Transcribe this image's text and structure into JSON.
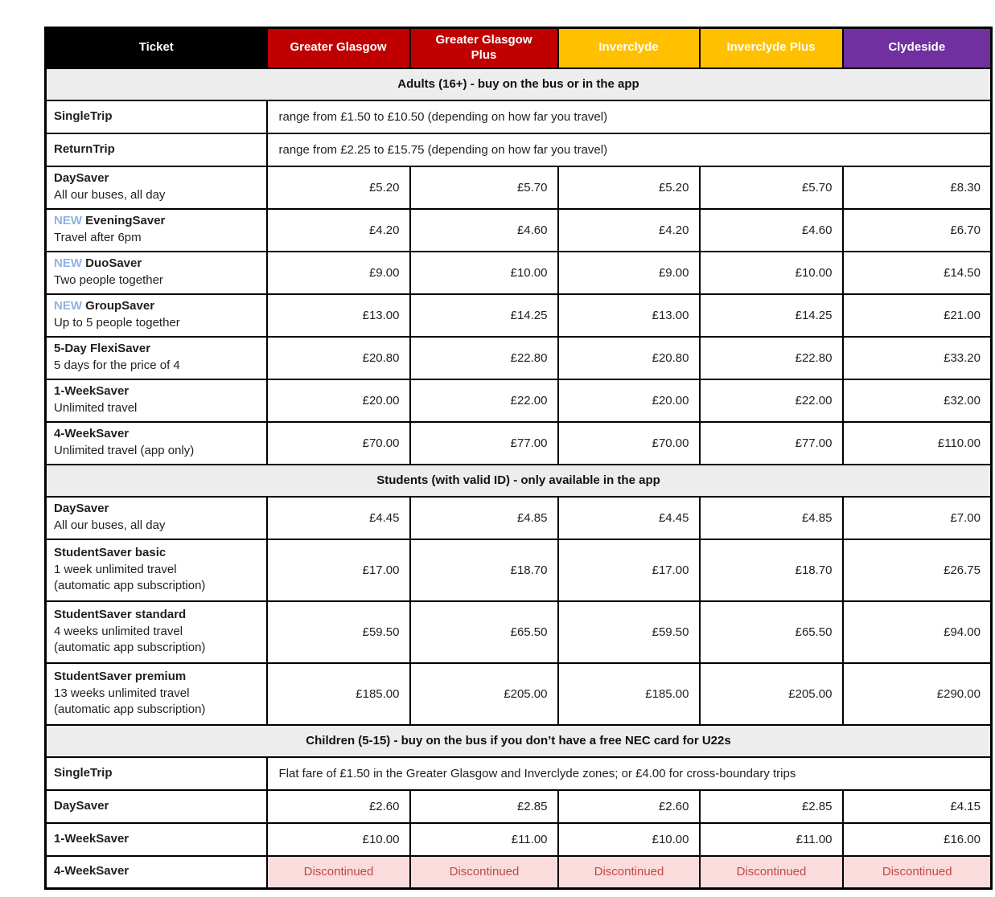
{
  "colors": {
    "ticket_header_bg": "#000000",
    "glasgow_bg": "#C00000",
    "inverclyde_bg": "#FFC000",
    "clydeside_bg": "#7030A0",
    "header_fg": "#FFFFFF",
    "section_bg": "#EDEDED",
    "new_badge_fg": "#8EB4E3",
    "discontinued_fg": "#C24848",
    "discontinued_bg": "#FADCDC"
  },
  "table": {
    "header": [
      {
        "label": "Ticket",
        "bg": "#000000",
        "fg": "#FFFFFF"
      },
      {
        "label": "Greater Glasgow",
        "bg": "#C00000",
        "fg": "#FFFFFF"
      },
      {
        "label": "Greater Glasgow Plus",
        "bg": "#C00000",
        "fg": "#FFFFFF"
      },
      {
        "label": "Inverclyde",
        "bg": "#FFC000",
        "fg": "#FFFFFF"
      },
      {
        "label": "Inverclyde Plus",
        "bg": "#FFC000",
        "fg": "#FFFFFF"
      },
      {
        "label": "Clydeside",
        "bg": "#7030A0",
        "fg": "#FFFFFF"
      }
    ],
    "sections": [
      {
        "title": "Adults (16+) - buy on the bus or in the app",
        "rows": [
          {
            "ticket": "SingleTrip",
            "note": "range from £1.50 to £10.50 (depending on how far you travel)"
          },
          {
            "ticket": "ReturnTrip",
            "note": "range from £2.25 to £15.75 (depending on how far you travel)"
          },
          {
            "ticket": "DaySaver",
            "sub": [
              "All our buses, all day"
            ],
            "prices": [
              "£5.20",
              "£5.70",
              "£5.20",
              "£5.70",
              "£8.30"
            ]
          },
          {
            "ticket": "EveningSaver",
            "badge": "NEW",
            "sub": [
              "Travel after 6pm"
            ],
            "prices": [
              "£4.20",
              "£4.60",
              "£4.20",
              "£4.60",
              "£6.70"
            ]
          },
          {
            "ticket": "DuoSaver",
            "badge": "NEW",
            "sub": [
              "Two people together"
            ],
            "prices": [
              "£9.00",
              "£10.00",
              "£9.00",
              "£10.00",
              "£14.50"
            ]
          },
          {
            "ticket": "GroupSaver",
            "badge": "NEW",
            "sub": [
              "Up to 5 people together"
            ],
            "prices": [
              "£13.00",
              "£14.25",
              "£13.00",
              "£14.25",
              "£21.00"
            ]
          },
          {
            "ticket": "5-Day FlexiSaver",
            "sub": [
              "5 days for the price of 4"
            ],
            "prices": [
              "£20.80",
              "£22.80",
              "£20.80",
              "£22.80",
              "£33.20"
            ]
          },
          {
            "ticket": "1-WeekSaver",
            "sub": [
              "Unlimited travel"
            ],
            "prices": [
              "£20.00",
              "£22.00",
              "£20.00",
              "£22.00",
              "£32.00"
            ]
          },
          {
            "ticket": "4-WeekSaver",
            "sub": [
              "Unlimited travel (app only)"
            ],
            "prices": [
              "£70.00",
              "£77.00",
              "£70.00",
              "£77.00",
              "£110.00"
            ]
          }
        ]
      },
      {
        "title": "Students (with valid ID) - only available in the app",
        "rows": [
          {
            "ticket": "DaySaver",
            "sub": [
              "All our buses, all day"
            ],
            "prices": [
              "£4.45",
              "£4.85",
              "£4.45",
              "£4.85",
              "£7.00"
            ]
          },
          {
            "ticket": "StudentSaver basic",
            "sub": [
              "1 week unlimited travel",
              "(automatic app subscription)"
            ],
            "prices": [
              "£17.00",
              "£18.70",
              "£17.00",
              "£18.70",
              "£26.75"
            ]
          },
          {
            "ticket": "StudentSaver standard",
            "sub": [
              "4 weeks unlimited travel",
              "(automatic app subscription)"
            ],
            "prices": [
              "£59.50",
              "£65.50",
              "£59.50",
              "£65.50",
              "£94.00"
            ]
          },
          {
            "ticket": "StudentSaver premium",
            "sub": [
              "13 weeks unlimited travel",
              "(automatic app subscription)"
            ],
            "prices": [
              "£185.00",
              "£205.00",
              "£185.00",
              "£205.00",
              "£290.00"
            ]
          }
        ]
      },
      {
        "title": "Children (5-15) - buy on the bus if you don’t have a free NEC card for U22s",
        "rows": [
          {
            "ticket": "SingleTrip",
            "note": "Flat fare of £1.50 in the Greater Glasgow and Inverclyde zones; or £4.00 for cross-boundary trips"
          },
          {
            "ticket": "DaySaver",
            "prices": [
              "£2.60",
              "£2.85",
              "£2.60",
              "£2.85",
              "£4.15"
            ]
          },
          {
            "ticket": "1-WeekSaver",
            "prices": [
              "£10.00",
              "£11.00",
              "£10.00",
              "£11.00",
              "£16.00"
            ]
          },
          {
            "ticket": "4-WeekSaver",
            "status": "discontinued",
            "prices": [
              "Discontinued",
              "Discontinued",
              "Discontinued",
              "Discontinued",
              "Discontinued"
            ]
          }
        ]
      }
    ]
  }
}
